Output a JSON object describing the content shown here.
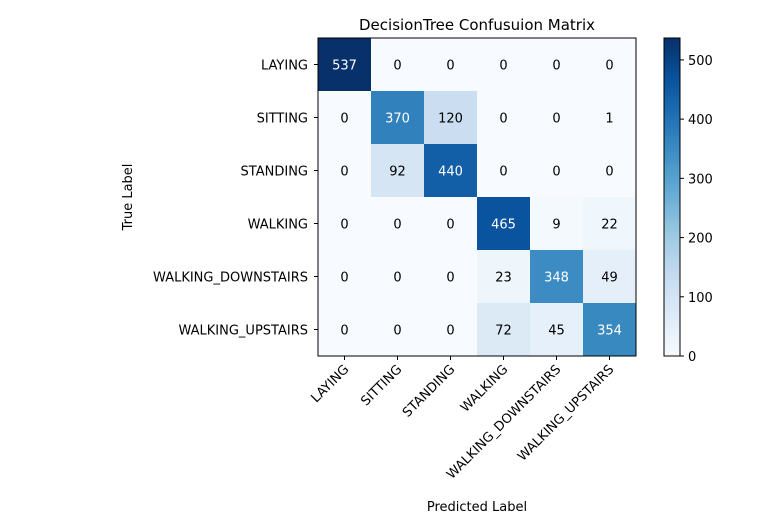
{
  "chart_data": {
    "type": "heatmap",
    "title": "DecisionTree Confusuion Matrix",
    "xlabel": "Predicted Label",
    "ylabel": "True Label",
    "categories": [
      "LAYING",
      "SITTING",
      "STANDING",
      "WALKING",
      "WALKING_DOWNSTAIRS",
      "WALKING_UPSTAIRS"
    ],
    "matrix": [
      [
        537,
        0,
        0,
        0,
        0,
        0
      ],
      [
        0,
        370,
        120,
        0,
        0,
        1
      ],
      [
        0,
        92,
        440,
        0,
        0,
        0
      ],
      [
        0,
        0,
        0,
        465,
        9,
        22
      ],
      [
        0,
        0,
        0,
        23,
        348,
        49
      ],
      [
        0,
        0,
        0,
        72,
        45,
        354
      ]
    ],
    "colorbar": {
      "colormap": "Blues",
      "range": [
        0,
        537
      ],
      "ticks": [
        0,
        100,
        200,
        300,
        400,
        500
      ]
    },
    "grid": false
  }
}
